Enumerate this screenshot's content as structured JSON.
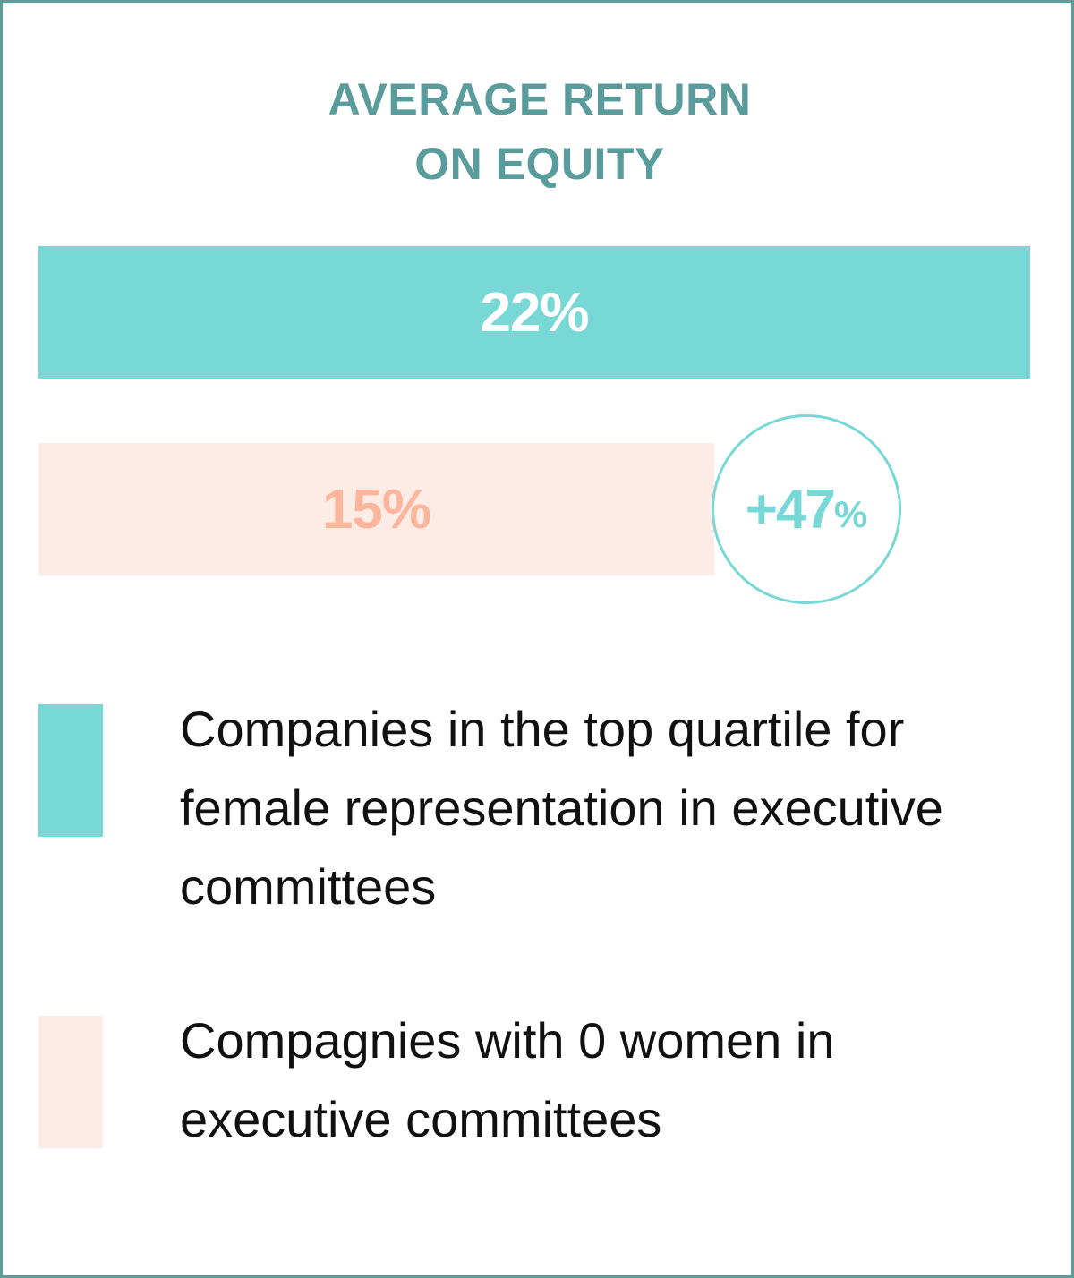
{
  "title": {
    "line1": "AVERAGE RETURN",
    "line2": "ON EQUITY"
  },
  "colors": {
    "border": "#5e9b9b",
    "title": "#5a9c9c",
    "series_top": "#78d8d6",
    "series_zero": "#fdebe5",
    "series_zero_label": "#fdb59b"
  },
  "chart_data": {
    "type": "bar",
    "orientation": "horizontal",
    "categories": [
      "Companies in the top quartile for female representation in executive committees",
      "Compagnies with 0 women in executive committees"
    ],
    "values": [
      22,
      15
    ],
    "value_labels": [
      "22%",
      "15%"
    ],
    "xlim": [
      0,
      22
    ],
    "grid": false,
    "legend_position": "bottom",
    "annotation": {
      "value": "+47",
      "unit": "%"
    }
  }
}
